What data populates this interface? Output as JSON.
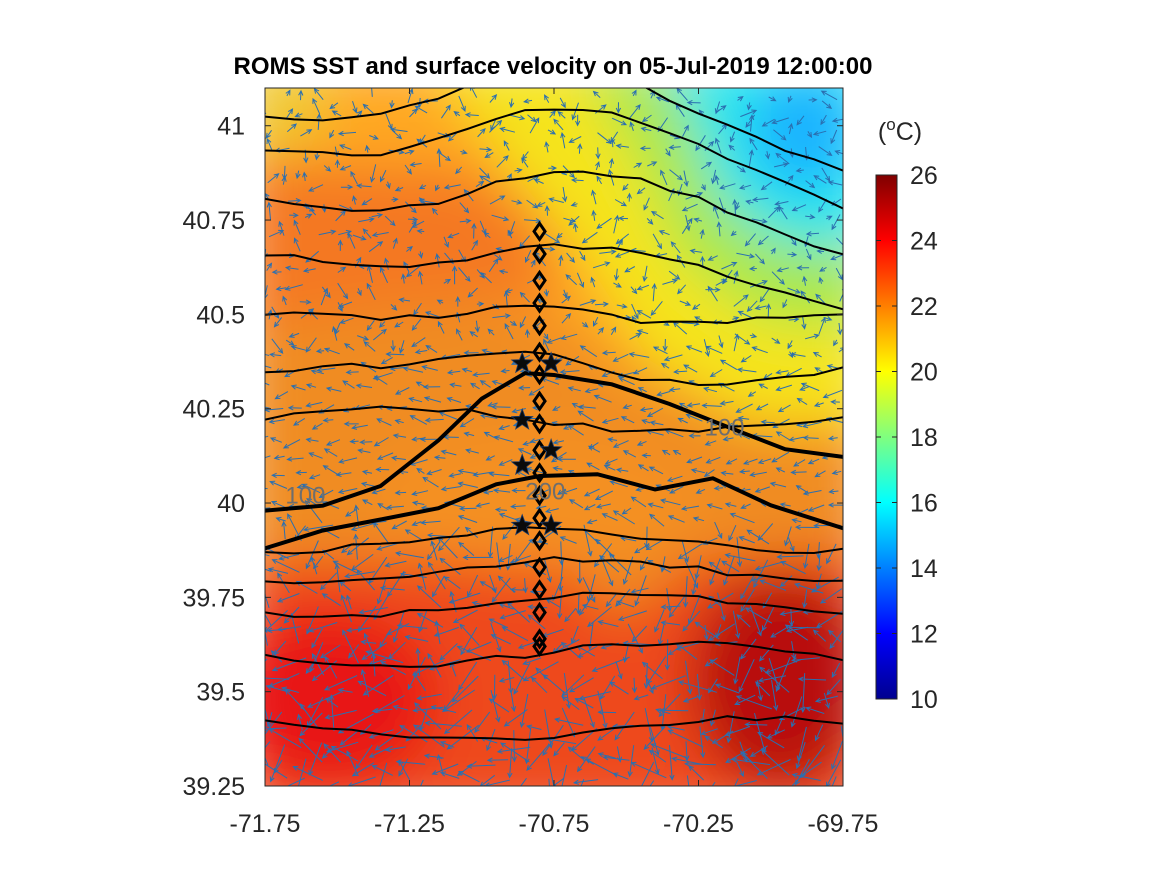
{
  "chart_data": {
    "type": "heatmap",
    "title": "ROMS SST and surface velocity on 05-Jul-2019 12:00:00",
    "xlabel": "",
    "ylabel": "",
    "xlim": [
      -71.75,
      -69.75
    ],
    "ylim": [
      39.25,
      41.1
    ],
    "x_ticks": [
      -71.75,
      -71.25,
      -70.75,
      -70.25,
      -69.75
    ],
    "x_tick_labels": [
      "-71.75",
      "-71.25",
      "-70.75",
      "-70.25",
      "-69.75"
    ],
    "y_ticks": [
      39.25,
      39.5,
      39.75,
      40,
      40.25,
      40.5,
      40.75,
      41
    ],
    "y_tick_labels": [
      "39.25",
      "39.5",
      "39.75",
      "40",
      "40.25",
      "40.5",
      "40.75",
      "41"
    ],
    "colorbar": {
      "unit_base": "(",
      "unit_sup": "o",
      "unit_rest": "C)",
      "range": [
        10,
        26
      ],
      "ticks": [
        10,
        12,
        14,
        16,
        18,
        20,
        22,
        24,
        26
      ],
      "tick_labels": [
        "10",
        "12",
        "14",
        "16",
        "18",
        "20",
        "22",
        "24",
        "26"
      ],
      "colormap": "jet"
    },
    "sst_field": {
      "description_units": "degC",
      "warm_patch_se": {
        "lon": -69.95,
        "lat": 39.6,
        "value": 25.5
      },
      "warm_patch_sw": {
        "lon": -71.3,
        "lat": 39.4,
        "value": 24.5
      },
      "cold_eddy_ne": {
        "lon": -70.0,
        "lat": 40.95,
        "value": 15.0
      },
      "shelf_front_lat": 40.45
    },
    "isobaths": [
      {
        "label": "100",
        "label_lon": -71.61,
        "label_lat": 40.02,
        "bold": true,
        "points": [
          [
            -71.75,
            39.98
          ],
          [
            -71.55,
            40.0
          ],
          [
            -71.35,
            40.04
          ],
          [
            -71.15,
            40.16
          ],
          [
            -71.0,
            40.28
          ],
          [
            -70.85,
            40.34
          ],
          [
            -70.75,
            40.34
          ],
          [
            -70.55,
            40.31
          ],
          [
            -70.35,
            40.26
          ],
          [
            -70.15,
            40.2
          ],
          [
            -69.95,
            40.14
          ],
          [
            -69.75,
            40.12
          ]
        ]
      },
      {
        "label": "100",
        "label_lon": -70.16,
        "label_lat": 40.2,
        "bold": true,
        "points": []
      },
      {
        "label": "200",
        "label_lon": -70.78,
        "label_lat": 40.03,
        "bold": true,
        "points": [
          [
            -71.75,
            39.88
          ],
          [
            -71.55,
            39.93
          ],
          [
            -71.35,
            39.96
          ],
          [
            -71.15,
            39.98
          ],
          [
            -70.95,
            40.05
          ],
          [
            -70.8,
            40.07
          ],
          [
            -70.6,
            40.07
          ],
          [
            -70.4,
            40.04
          ],
          [
            -70.2,
            40.07
          ],
          [
            -70.0,
            39.99
          ],
          [
            -69.75,
            39.93
          ]
        ]
      }
    ],
    "contours_thin_lat": [
      41.05,
      40.95,
      40.8,
      40.63,
      40.47,
      40.33,
      40.22,
      39.9,
      39.82,
      39.73,
      39.6,
      39.4
    ],
    "transect_stations": {
      "lon": -70.8,
      "lat": [
        40.72,
        40.66,
        40.59,
        40.53,
        40.47,
        40.4,
        40.34,
        40.27,
        40.21,
        40.14,
        40.08,
        40.02,
        39.96,
        39.9,
        39.83,
        39.77,
        39.71,
        39.64,
        39.62
      ]
    },
    "moorings": [
      {
        "lon": -70.86,
        "lat": 40.37
      },
      {
        "lon": -70.76,
        "lat": 40.37
      },
      {
        "lon": -70.86,
        "lat": 40.22
      },
      {
        "lon": -70.86,
        "lat": 40.1
      },
      {
        "lon": -70.76,
        "lat": 40.14
      },
      {
        "lon": -70.86,
        "lat": 39.94
      },
      {
        "lon": -70.76,
        "lat": 39.94
      }
    ],
    "velocity": {
      "color": "#2a6fb0",
      "note_visual": "strong southwestward jet over the shelf break, weak flow elsewhere"
    }
  }
}
